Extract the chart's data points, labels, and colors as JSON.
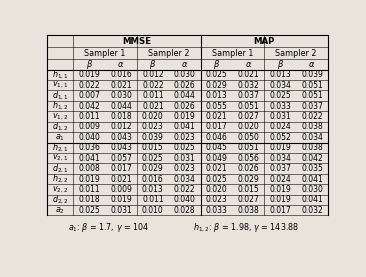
{
  "row_labels": [
    "h_{1,1}",
    "v_{1,1}",
    "d_{1,1}",
    "h_{1,2}",
    "v_{1,2}",
    "d_{1,2}",
    "a_1",
    "h_{2,1}",
    "v_{2,1}",
    "d_{2,1}",
    "h_{2,2}",
    "v_{2,2}",
    "d_{2,2}",
    "a_2"
  ],
  "data": [
    [
      0.019,
      0.016,
      0.012,
      0.03,
      0.025,
      0.021,
      0.013,
      0.039
    ],
    [
      0.022,
      0.021,
      0.022,
      0.026,
      0.029,
      0.032,
      0.034,
      0.051
    ],
    [
      0.007,
      0.03,
      0.011,
      0.044,
      0.013,
      0.037,
      0.025,
      0.051
    ],
    [
      0.042,
      0.044,
      0.021,
      0.026,
      0.055,
      0.051,
      0.033,
      0.037
    ],
    [
      0.011,
      0.018,
      0.02,
      0.019,
      0.021,
      0.027,
      0.031,
      0.022
    ],
    [
      0.009,
      0.012,
      0.023,
      0.041,
      0.017,
      0.02,
      0.024,
      0.038
    ],
    [
      0.04,
      0.043,
      0.039,
      0.023,
      0.046,
      0.05,
      0.052,
      0.034
    ],
    [
      0.036,
      0.043,
      0.015,
      0.025,
      0.045,
      0.051,
      0.019,
      0.038
    ],
    [
      0.041,
      0.057,
      0.025,
      0.031,
      0.049,
      0.056,
      0.034,
      0.042
    ],
    [
      0.008,
      0.017,
      0.029,
      0.023,
      0.021,
      0.026,
      0.037,
      0.035
    ],
    [
      0.019,
      0.021,
      0.016,
      0.034,
      0.025,
      0.029,
      0.024,
      0.041
    ],
    [
      0.011,
      0.009,
      0.013,
      0.022,
      0.02,
      0.015,
      0.019,
      0.03
    ],
    [
      0.018,
      0.019,
      0.011,
      0.04,
      0.023,
      0.027,
      0.019,
      0.041
    ],
    [
      0.025,
      0.031,
      0.01,
      0.028,
      0.033,
      0.038,
      0.017,
      0.032
    ]
  ],
  "bg_color": "#e8e4dc",
  "footnote_a1": "a_1: β = 1.7, γ = 104",
  "footnote_h12": "h_{1,2}: β = 1.98, γ = 143.88"
}
